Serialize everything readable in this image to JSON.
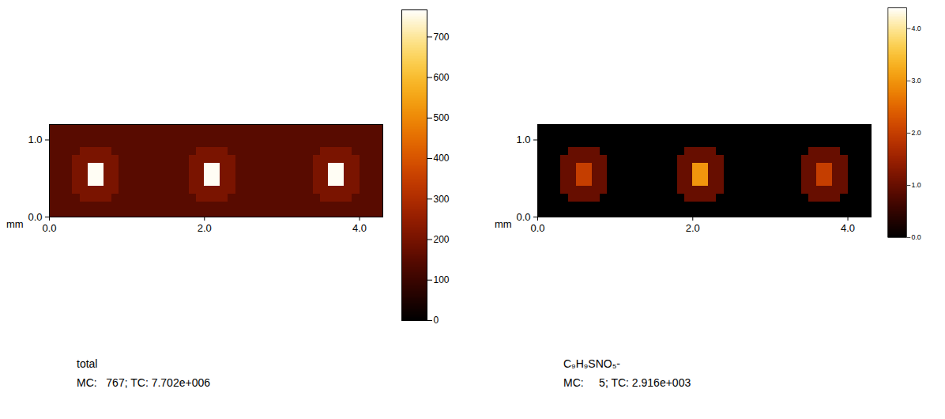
{
  "chart_data": [
    {
      "type": "heatmap",
      "title": "total",
      "subtitle": "MC:   767; TC: 7.702e+006",
      "x_label": "mm",
      "xlim": [
        0,
        4.3
      ],
      "ylim": [
        0,
        1.2
      ],
      "xticks": [
        {
          "value": 0,
          "label": "0.0"
        },
        {
          "value": 2,
          "label": "2.0"
        },
        {
          "value": 4,
          "label": "4.0"
        }
      ],
      "yticks": [
        {
          "value": 0,
          "label": "0.0"
        },
        {
          "value": 1,
          "label": "1.0"
        }
      ],
      "x_bins": [
        0,
        0.1,
        0.2,
        0.3,
        0.4,
        0.5,
        0.6,
        0.7,
        0.8,
        0.9,
        1.0,
        1.1,
        1.2,
        1.3,
        1.4,
        1.5,
        1.6,
        1.7,
        1.8,
        1.9,
        2.0,
        2.1,
        2.2,
        2.3,
        2.4,
        2.5,
        2.6,
        2.7,
        2.8,
        2.9,
        3.0,
        3.1,
        3.2,
        3.3,
        3.4,
        3.5,
        3.6,
        3.7,
        3.8,
        3.9,
        4.0,
        4.1,
        4.2,
        4.3
      ],
      "y_bins": [
        0,
        0.1,
        0.2,
        0.3,
        0.4,
        0.5,
        0.6,
        0.7,
        0.8,
        0.9,
        1.0,
        1.1,
        1.2
      ],
      "cells": [
        [
          150,
          150,
          150,
          150,
          150,
          150,
          150,
          150,
          150,
          150,
          150,
          150,
          150,
          150,
          150,
          150,
          150,
          150,
          150,
          150,
          150,
          150,
          150,
          150,
          150,
          150,
          150,
          150,
          150,
          150,
          150,
          150,
          150,
          150,
          150,
          150,
          150,
          150,
          150,
          150,
          150,
          150,
          150
        ],
        [
          150,
          150,
          150,
          150,
          150,
          150,
          150,
          150,
          150,
          150,
          150,
          150,
          150,
          150,
          150,
          150,
          150,
          150,
          150,
          150,
          150,
          150,
          150,
          150,
          150,
          150,
          150,
          150,
          150,
          150,
          150,
          150,
          150,
          150,
          150,
          150,
          150,
          150,
          150,
          150,
          150,
          150,
          150
        ],
        [
          150,
          150,
          150,
          150,
          205,
          205,
          205,
          205,
          150,
          150,
          150,
          150,
          150,
          150,
          150,
          150,
          150,
          150,
          150,
          205,
          205,
          205,
          205,
          150,
          150,
          150,
          150,
          150,
          150,
          150,
          150,
          150,
          150,
          150,
          150,
          205,
          205,
          205,
          205,
          150,
          150,
          150,
          150
        ],
        [
          150,
          150,
          150,
          205,
          205,
          205,
          205,
          205,
          205,
          150,
          150,
          150,
          150,
          150,
          150,
          150,
          150,
          150,
          205,
          205,
          205,
          205,
          205,
          205,
          150,
          150,
          150,
          150,
          150,
          150,
          150,
          150,
          150,
          150,
          205,
          205,
          205,
          205,
          205,
          205,
          150,
          150,
          150
        ],
        [
          150,
          150,
          150,
          205,
          205,
          760,
          760,
          205,
          205,
          150,
          150,
          150,
          150,
          150,
          150,
          150,
          150,
          150,
          205,
          205,
          760,
          760,
          205,
          205,
          150,
          150,
          150,
          150,
          150,
          150,
          150,
          150,
          150,
          150,
          205,
          205,
          760,
          760,
          205,
          205,
          150,
          150,
          150
        ],
        [
          150,
          150,
          150,
          205,
          205,
          760,
          760,
          205,
          205,
          150,
          150,
          150,
          150,
          150,
          150,
          150,
          150,
          150,
          205,
          205,
          760,
          760,
          205,
          205,
          150,
          150,
          150,
          150,
          150,
          150,
          150,
          150,
          150,
          150,
          205,
          205,
          760,
          760,
          205,
          205,
          150,
          150,
          150
        ],
        [
          150,
          150,
          150,
          205,
          205,
          760,
          760,
          205,
          205,
          150,
          150,
          150,
          150,
          150,
          150,
          150,
          150,
          150,
          205,
          205,
          760,
          760,
          205,
          205,
          150,
          150,
          150,
          150,
          150,
          150,
          150,
          150,
          150,
          150,
          205,
          205,
          760,
          760,
          205,
          205,
          150,
          150,
          150
        ],
        [
          150,
          150,
          150,
          205,
          205,
          205,
          205,
          205,
          205,
          150,
          150,
          150,
          150,
          150,
          150,
          150,
          150,
          150,
          205,
          205,
          205,
          205,
          205,
          205,
          150,
          150,
          150,
          150,
          150,
          150,
          150,
          150,
          150,
          150,
          205,
          205,
          205,
          205,
          205,
          205,
          150,
          150,
          150
        ],
        [
          150,
          150,
          150,
          150,
          205,
          205,
          205,
          205,
          150,
          150,
          150,
          150,
          150,
          150,
          150,
          150,
          150,
          150,
          150,
          205,
          205,
          205,
          205,
          150,
          150,
          150,
          150,
          150,
          150,
          150,
          150,
          150,
          150,
          150,
          150,
          205,
          205,
          205,
          205,
          150,
          150,
          150,
          150
        ],
        [
          150,
          150,
          150,
          150,
          150,
          150,
          150,
          150,
          150,
          150,
          150,
          150,
          150,
          150,
          150,
          150,
          150,
          150,
          150,
          150,
          150,
          150,
          150,
          150,
          150,
          150,
          150,
          150,
          150,
          150,
          150,
          150,
          150,
          150,
          150,
          150,
          150,
          150,
          150,
          150,
          150,
          150,
          150
        ],
        [
          150,
          150,
          150,
          150,
          150,
          150,
          150,
          150,
          150,
          150,
          150,
          150,
          150,
          150,
          150,
          150,
          150,
          150,
          150,
          150,
          150,
          150,
          150,
          150,
          150,
          150,
          150,
          150,
          150,
          150,
          150,
          150,
          150,
          150,
          150,
          150,
          150,
          150,
          150,
          150,
          150,
          150,
          150
        ],
        [
          150,
          150,
          150,
          150,
          150,
          150,
          150,
          150,
          150,
          150,
          150,
          150,
          150,
          150,
          150,
          150,
          150,
          150,
          150,
          150,
          150,
          150,
          150,
          150,
          150,
          150,
          150,
          150,
          150,
          150,
          150,
          150,
          150,
          150,
          150,
          150,
          150,
          150,
          150,
          150,
          150,
          150,
          150
        ]
      ],
      "color_range": [
        0,
        767
      ],
      "color_ticks": [
        0,
        100,
        200,
        300,
        400,
        500,
        600,
        700
      ]
    },
    {
      "type": "heatmap",
      "title": "C₉H₉SNO₅-",
      "subtitle": "MC:     5; TC: 2.916e+003",
      "x_label": "mm",
      "xlim": [
        0,
        4.3
      ],
      "ylim": [
        0,
        1.2
      ],
      "xticks": [
        {
          "value": 0,
          "label": "0.0"
        },
        {
          "value": 2,
          "label": "2.0"
        },
        {
          "value": 4,
          "label": "4.0"
        }
      ],
      "yticks": [
        {
          "value": 0,
          "label": "0.0"
        },
        {
          "value": 1,
          "label": "1.0"
        }
      ],
      "x_bins": [
        0,
        0.1,
        0.2,
        0.3,
        0.4,
        0.5,
        0.6,
        0.7,
        0.8,
        0.9,
        1.0,
        1.1,
        1.2,
        1.3,
        1.4,
        1.5,
        1.6,
        1.7,
        1.8,
        1.9,
        2.0,
        2.1,
        2.2,
        2.3,
        2.4,
        2.5,
        2.6,
        2.7,
        2.8,
        2.9,
        3.0,
        3.1,
        3.2,
        3.3,
        3.4,
        3.5,
        3.6,
        3.7,
        3.8,
        3.9,
        4.0,
        4.1,
        4.2,
        4.3
      ],
      "y_bins": [
        0,
        0.1,
        0.2,
        0.3,
        0.4,
        0.5,
        0.6,
        0.7,
        0.8,
        0.9,
        1.0,
        1.1,
        1.2
      ],
      "cells": [
        [
          0,
          0,
          0,
          0,
          0,
          0,
          0,
          0,
          0,
          0,
          0,
          0,
          0,
          0,
          0,
          0,
          0,
          0,
          0,
          0,
          0,
          0,
          0,
          0,
          0,
          0,
          0,
          0,
          0,
          0,
          0,
          0,
          0,
          0,
          0,
          0,
          0,
          0,
          0,
          0,
          0,
          0,
          0
        ],
        [
          0,
          0,
          0,
          0,
          0,
          0,
          0,
          0,
          0,
          0,
          0,
          0,
          0,
          0,
          0,
          0,
          0,
          0,
          0,
          0,
          0,
          0,
          0,
          0,
          0,
          0,
          0,
          0,
          0,
          0,
          0,
          0,
          0,
          0,
          0,
          0,
          0,
          0,
          0,
          0,
          0,
          0,
          0
        ],
        [
          0,
          0,
          0,
          0,
          1,
          1,
          1,
          1,
          0,
          0,
          0,
          0,
          0,
          0,
          0,
          0,
          0,
          0,
          0,
          1,
          1,
          1,
          1,
          0,
          0,
          0,
          0,
          0,
          0,
          0,
          0,
          0,
          0,
          0,
          0,
          1,
          1,
          1,
          1,
          0,
          0,
          0,
          0
        ],
        [
          0,
          0,
          0,
          1,
          1,
          1,
          1,
          1,
          1,
          0,
          0,
          0,
          0,
          0,
          0,
          0,
          0,
          0,
          1,
          1,
          1,
          1,
          1,
          1,
          0,
          0,
          0,
          0,
          0,
          0,
          0,
          0,
          0,
          0,
          1,
          1,
          1,
          1,
          1,
          1,
          0,
          0,
          0
        ],
        [
          0,
          0,
          0,
          1,
          1,
          2,
          2,
          1,
          1,
          0,
          0,
          0,
          0,
          0,
          0,
          0,
          0,
          0,
          1,
          1,
          3,
          3,
          1,
          1,
          0,
          0,
          0,
          0,
          0,
          0,
          0,
          0,
          0,
          0,
          1,
          1,
          2,
          2,
          1,
          1,
          0,
          0,
          0
        ],
        [
          0,
          0,
          0,
          1,
          1,
          2,
          2,
          1,
          1,
          0,
          0,
          0,
          0,
          0,
          0,
          0,
          0,
          0,
          1,
          1,
          3,
          3,
          1,
          1,
          0,
          0,
          0,
          0,
          0,
          0,
          0,
          0,
          0,
          0,
          1,
          1,
          2,
          2,
          1,
          1,
          0,
          0,
          0
        ],
        [
          0,
          0,
          0,
          1,
          1,
          2,
          2,
          1,
          1,
          0,
          0,
          0,
          0,
          0,
          0,
          0,
          0,
          0,
          1,
          1,
          3,
          3,
          1,
          1,
          0,
          0,
          0,
          0,
          0,
          0,
          0,
          0,
          0,
          0,
          1,
          1,
          2,
          2,
          1,
          1,
          0,
          0,
          0
        ],
        [
          0,
          0,
          0,
          1,
          1,
          1,
          1,
          1,
          1,
          0,
          0,
          0,
          0,
          0,
          0,
          0,
          0,
          0,
          1,
          1,
          1,
          1,
          1,
          1,
          0,
          0,
          0,
          0,
          0,
          0,
          0,
          0,
          0,
          0,
          1,
          1,
          1,
          1,
          1,
          1,
          0,
          0,
          0
        ],
        [
          0,
          0,
          0,
          0,
          1,
          1,
          1,
          1,
          0,
          0,
          0,
          0,
          0,
          0,
          0,
          0,
          0,
          0,
          0,
          1,
          1,
          1,
          1,
          0,
          0,
          0,
          0,
          0,
          0,
          0,
          0,
          0,
          0,
          0,
          0,
          1,
          1,
          1,
          1,
          0,
          0,
          0,
          0
        ],
        [
          0,
          0,
          0,
          0,
          0,
          0,
          0,
          0,
          0,
          0,
          0,
          0,
          0,
          0,
          0,
          0,
          0,
          0,
          0,
          0,
          0,
          0,
          0,
          0,
          0,
          0,
          0,
          0,
          0,
          0,
          0,
          0,
          0,
          0,
          0,
          0,
          0,
          0,
          0,
          0,
          0,
          0,
          0
        ],
        [
          0,
          0,
          0,
          0,
          0,
          0,
          0,
          0,
          0,
          0,
          0,
          0,
          0,
          0,
          0,
          0,
          0,
          0,
          0,
          0,
          0,
          0,
          0,
          0,
          0,
          0,
          0,
          0,
          0,
          0,
          0,
          0,
          0,
          0,
          0,
          0,
          0,
          0,
          0,
          0,
          0,
          0,
          0
        ],
        [
          0,
          0,
          0,
          0,
          0,
          0,
          0,
          0,
          0,
          0,
          0,
          0,
          0,
          0,
          0,
          0,
          0,
          0,
          0,
          0,
          0,
          0,
          0,
          0,
          0,
          0,
          0,
          0,
          0,
          0,
          0,
          0,
          0,
          0,
          0,
          0,
          0,
          0,
          0,
          0,
          0,
          0,
          0
        ]
      ],
      "color_range": [
        0,
        4.4
      ],
      "color_ticks": [
        {
          "value": 0,
          "label": "0.0"
        },
        {
          "value": 1,
          "label": "1.0"
        },
        {
          "value": 2,
          "label": "2.0"
        },
        {
          "value": 3,
          "label": "3.0"
        },
        {
          "value": 4,
          "label": "4.0"
        }
      ]
    }
  ]
}
